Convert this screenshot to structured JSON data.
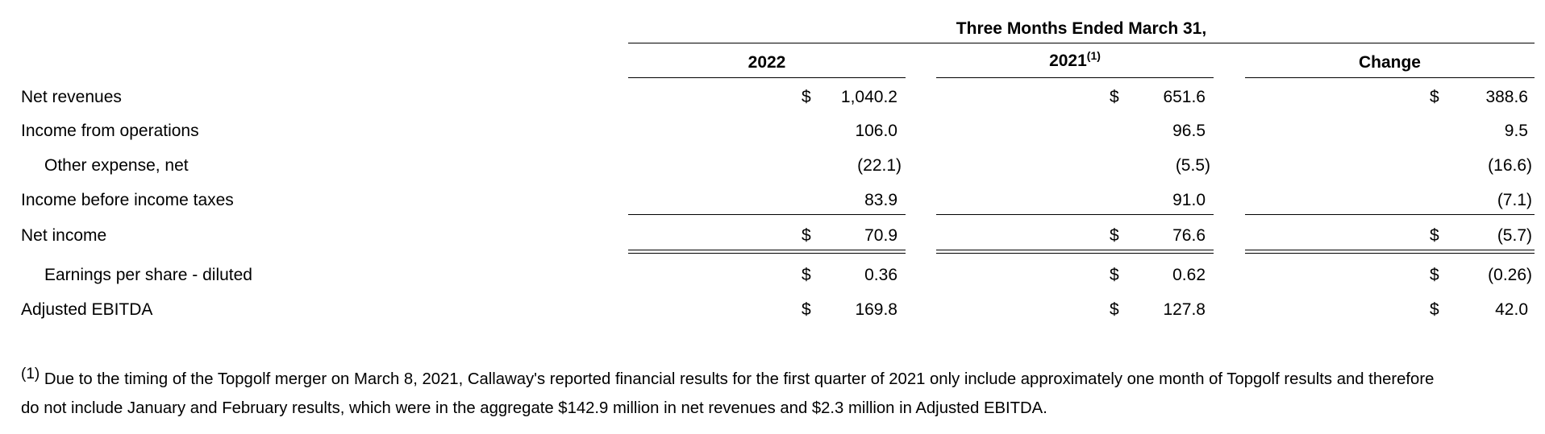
{
  "header": {
    "period": "Three Months Ended March 31,",
    "columns": [
      {
        "label": "2022",
        "sup": ""
      },
      {
        "label": "2021",
        "sup": "(1)"
      },
      {
        "label": "Change",
        "sup": ""
      }
    ]
  },
  "rows": [
    {
      "label": "Net revenues",
      "cells": [
        [
          "$",
          "1,040.2"
        ],
        [
          "$",
          "651.6"
        ],
        [
          "$",
          "388.6"
        ]
      ]
    },
    {
      "label": "Income from operations",
      "cells": [
        [
          "",
          "106.0"
        ],
        [
          "",
          "96.5"
        ],
        [
          "",
          "9.5"
        ]
      ]
    },
    {
      "label": "Other expense, net",
      "cells": [
        [
          "",
          "(22.1)"
        ],
        [
          "",
          "(5.5)"
        ],
        [
          "",
          "(16.6)"
        ]
      ]
    },
    {
      "label": "Income before income taxes",
      "cells": [
        [
          "",
          "83.9"
        ],
        [
          "",
          "91.0"
        ],
        [
          "",
          "(7.1)"
        ]
      ]
    },
    {
      "label": "Net income",
      "cells": [
        [
          "$",
          "70.9"
        ],
        [
          "$",
          "76.6"
        ],
        [
          "$",
          "(5.7)"
        ]
      ]
    },
    {
      "label": "Earnings per share - diluted",
      "cells": [
        [
          "$",
          "0.36"
        ],
        [
          "$",
          "0.62"
        ],
        [
          "$",
          "(0.26)"
        ]
      ]
    },
    {
      "label": "Adjusted EBITDA",
      "cells": [
        [
          "$",
          "169.8"
        ],
        [
          "$",
          "127.8"
        ],
        [
          "$",
          "42.0"
        ]
      ]
    }
  ],
  "footnote": {
    "marker": "(1)",
    "line1": "Due to the timing of the Topgolf merger on March 8, 2021, Callaway's reported financial results for the first quarter of 2021 only include approximately one month of Topgolf results and therefore",
    "line2": "do not include January and February results, which were in the aggregate $142.9 million in net revenues and $2.3 million in Adjusted EBITDA."
  }
}
